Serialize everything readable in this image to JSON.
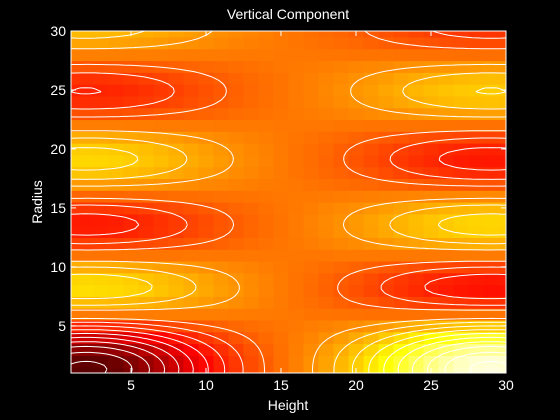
{
  "colors": {
    "background": "#000000",
    "text": "#ffffff",
    "contour": "#ffffff",
    "colormap": "hot"
  },
  "chart_data": {
    "type": "heatmap",
    "title": "Vertical Component",
    "xlabel": "Height",
    "ylabel": "Radius",
    "xlim": [
      1,
      30
    ],
    "ylim": [
      1,
      30
    ],
    "xticks": [
      5,
      10,
      15,
      20,
      25,
      30
    ],
    "yticks": [
      5,
      10,
      15,
      20,
      25,
      30
    ],
    "grid": false,
    "overlay": "contour",
    "shading": "flat",
    "x": [
      1,
      2,
      3,
      4,
      5,
      6,
      7,
      8,
      9,
      10,
      11,
      12,
      13,
      14,
      15,
      16,
      17,
      18,
      19,
      20,
      21,
      22,
      23,
      24,
      25,
      26,
      27,
      28,
      29,
      30
    ],
    "y": [
      1,
      2,
      3,
      4,
      5,
      6,
      7,
      8,
      9,
      10,
      11,
      12,
      13,
      14,
      15,
      16,
      17,
      18,
      19,
      20,
      21,
      22,
      23,
      24,
      25,
      26,
      27,
      28,
      29,
      30
    ],
    "field": {
      "description": "approximate field f(h,r) sampled on the 30x30 grid; higher values render lighter in the hot colormap",
      "center_h": 16,
      "terms": [
        {
          "h_center": 2,
          "r_center": 1.5,
          "amplitude": -1.05,
          "sigma_h": 6.0,
          "sigma_r": 3.2
        },
        {
          "h_center": 29,
          "r_center": 1.5,
          "amplitude": 1.05,
          "sigma_h": 6.0,
          "sigma_r": 3.2
        },
        {
          "h_center": 2,
          "r_center": 8,
          "amplitude": 0.55,
          "sigma_h": 6.5,
          "sigma_r": 2.6
        },
        {
          "h_center": 29,
          "r_center": 8,
          "amplitude": -0.55,
          "sigma_h": 6.5,
          "sigma_r": 2.6
        },
        {
          "h_center": 2,
          "r_center": 13.5,
          "amplitude": -0.45,
          "sigma_h": 6.5,
          "sigma_r": 2.6
        },
        {
          "h_center": 29,
          "r_center": 13.5,
          "amplitude": 0.45,
          "sigma_h": 6.5,
          "sigma_r": 2.6
        },
        {
          "h_center": 2,
          "r_center": 19,
          "amplitude": 0.42,
          "sigma_h": 6.5,
          "sigma_r": 2.6
        },
        {
          "h_center": 29,
          "r_center": 19,
          "amplitude": -0.42,
          "sigma_h": 6.5,
          "sigma_r": 2.6
        },
        {
          "h_center": 2,
          "r_center": 25,
          "amplitude": -0.38,
          "sigma_h": 6.5,
          "sigma_r": 2.6
        },
        {
          "h_center": 29,
          "r_center": 25,
          "amplitude": 0.38,
          "sigma_h": 6.5,
          "sigma_r": 2.6
        },
        {
          "h_center": 2,
          "r_center": 30,
          "amplitude": 0.3,
          "sigma_h": 6.5,
          "sigma_r": 2.6
        },
        {
          "h_center": 29,
          "r_center": 30,
          "amplitude": -0.3,
          "sigma_h": 6.5,
          "sigma_r": 2.6
        }
      ],
      "value_range": [
        -1.05,
        1.05
      ]
    },
    "contour_levels": [
      -1.0,
      -0.9,
      -0.8,
      -0.7,
      -0.6,
      -0.5,
      -0.4,
      -0.3,
      -0.2,
      -0.1,
      0.1,
      0.2,
      0.3,
      0.4,
      0.5,
      0.6,
      0.7,
      0.8,
      0.9,
      1.0
    ]
  }
}
